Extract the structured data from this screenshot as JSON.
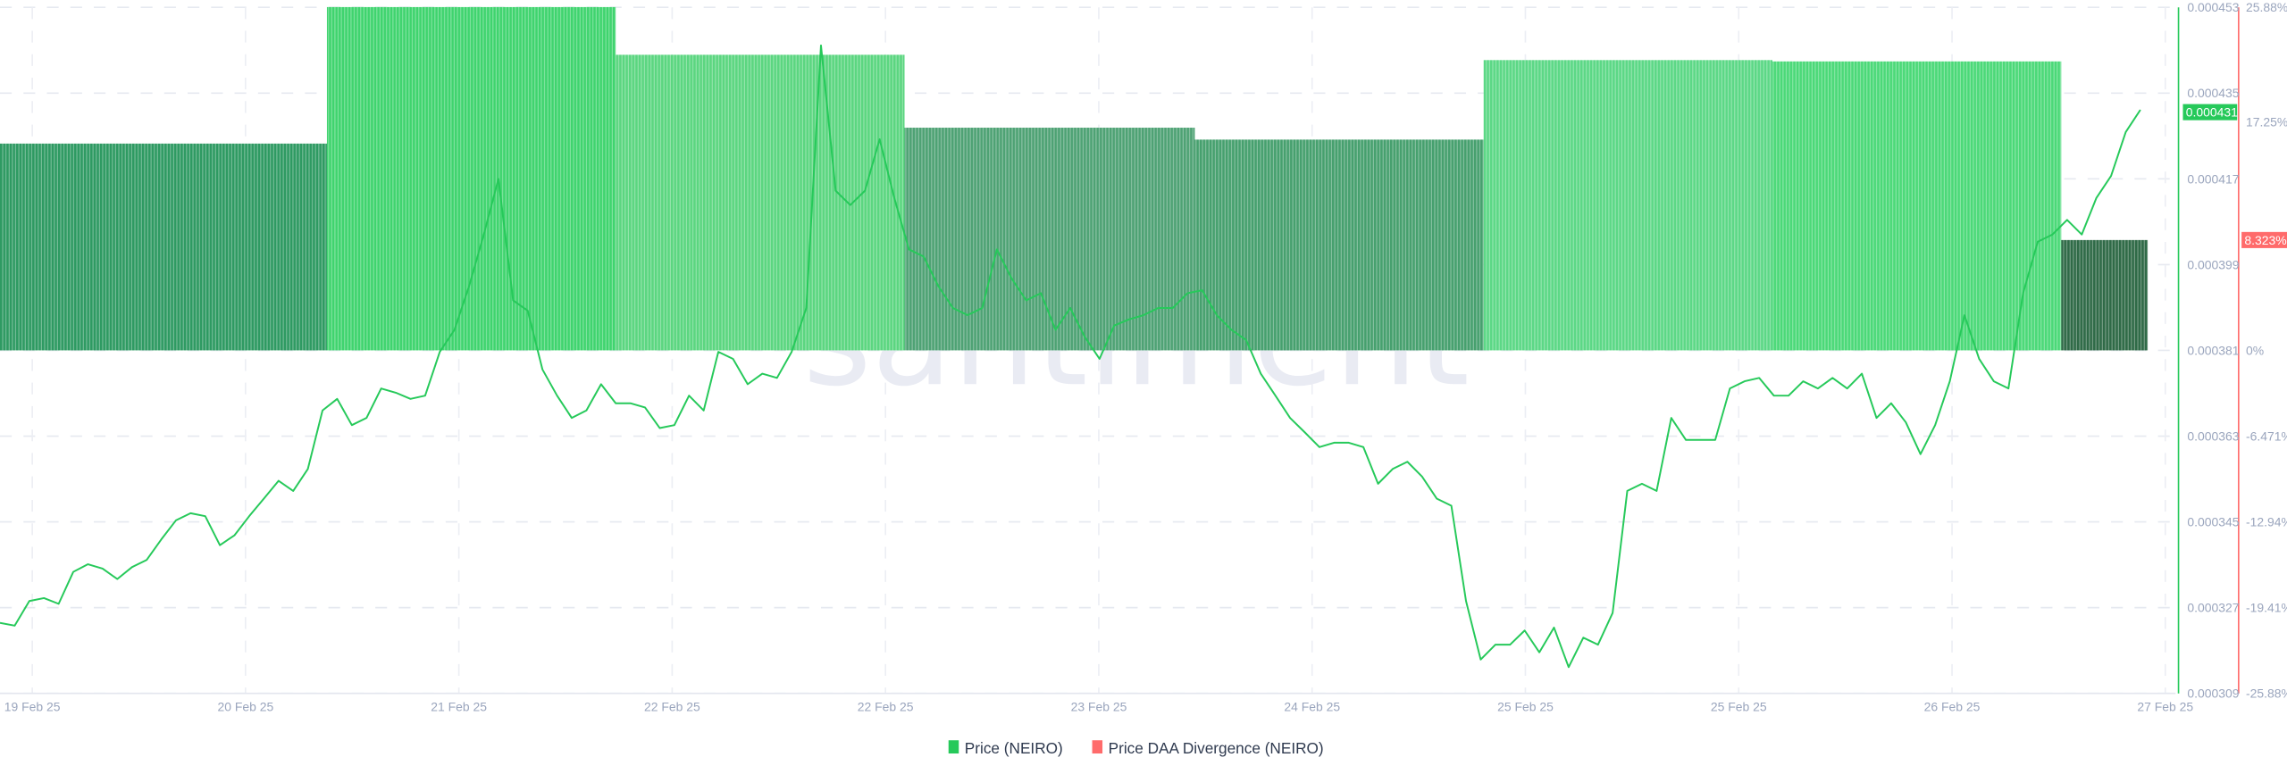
{
  "watermark": "santiment",
  "legend": [
    {
      "label": "Price (NEIRO)",
      "color": "#26c95a"
    },
    {
      "label": "Price DAA Divergence (NEIRO)",
      "color": "#ff6b6b"
    }
  ],
  "chart_data": {
    "type": "bar+line",
    "x_ticks": [
      "19 Feb 25",
      "20 Feb 25",
      "21 Feb 25",
      "22 Feb 25",
      "22 Feb 25",
      "23 Feb 25",
      "24 Feb 25",
      "25 Feb 25",
      "25 Feb 25",
      "26 Feb 25",
      "27 Feb 25"
    ],
    "grid": true,
    "legend_position": "bottom",
    "price_axis": {
      "ticks": [
        "0.000453",
        "0.000435",
        "0.000417",
        "0.000399",
        "0.000381",
        "0.000363",
        "0.000345",
        "0.000327",
        "0.000309"
      ],
      "ylim": [
        0.000309,
        0.000453
      ],
      "color": "#26c95a",
      "current_label": "0.000431",
      "current_value": 0.000431
    },
    "divergence_axis": {
      "ticks": [
        "25.88%",
        "17.25%",
        "8.323%",
        "0%",
        "-6.471%",
        "-12.94%",
        "-19.41%",
        "-25.88%"
      ],
      "tick_values": [
        25.88,
        17.25,
        8.323,
        0,
        -6.471,
        -12.94,
        -19.41,
        -25.88
      ],
      "ylim": [
        -25.88,
        25.88
      ],
      "color": "#ff6b6b",
      "current_label": "8.323%",
      "current_value": 8.323
    },
    "series": [
      {
        "name": "Price DAA Divergence (NEIRO)",
        "type": "bar",
        "unit": "%",
        "values": [
          15.6,
          25.9,
          22.3,
          16.8,
          15.9,
          21.9,
          21.8,
          8.323
        ],
        "colors": [
          "#2e9a62",
          "#3fd46e",
          "#5bd680",
          "#4ea274",
          "#46a06e",
          "#5cd886",
          "#4bd978",
          "#2f6a47"
        ]
      },
      {
        "name": "Price (NEIRO)",
        "type": "line",
        "color": "#26c95a",
        "values_e6": [
          323.8,
          323.2,
          328.4,
          329.0,
          327.8,
          334.5,
          336.1,
          335.2,
          333.0,
          335.5,
          337.0,
          341.3,
          345.3,
          346.8,
          346.2,
          340.1,
          342.2,
          346.2,
          349.9,
          353.6,
          351.5,
          356.1,
          368.4,
          370.8,
          365.3,
          366.8,
          373.0,
          372.1,
          370.8,
          371.5,
          380.7,
          385.3,
          394.5,
          405.3,
          417.0,
          391.5,
          389.3,
          377.0,
          371.5,
          366.8,
          368.4,
          373.9,
          369.9,
          369.9,
          369.0,
          364.7,
          365.3,
          371.5,
          368.4,
          380.7,
          379.2,
          373.9,
          376.1,
          375.2,
          380.7,
          389.9,
          445.0,
          414.5,
          411.5,
          414.5,
          425.3,
          413.0,
          402.2,
          400.7,
          394.5,
          389.9,
          388.4,
          389.9,
          402.2,
          396.1,
          391.5,
          393.0,
          385.3,
          389.9,
          383.8,
          379.2,
          386.2,
          387.5,
          388.4,
          389.9,
          389.9,
          393.0,
          393.6,
          388.4,
          385.3,
          383.2,
          376.1,
          371.5,
          366.8,
          363.8,
          360.7,
          361.6,
          361.6,
          360.7,
          353.0,
          356.1,
          357.6,
          354.5,
          349.9,
          348.4,
          328.4,
          316.1,
          319.2,
          319.2,
          322.2,
          317.6,
          322.8,
          314.5,
          320.7,
          319.2,
          325.9,
          351.5,
          353.0,
          351.5,
          366.8,
          362.2,
          362.2,
          362.2,
          373.0,
          374.5,
          375.2,
          371.5,
          371.5,
          374.5,
          373.0,
          375.2,
          373.0,
          376.1,
          366.8,
          369.9,
          365.9,
          359.2,
          365.3,
          374.5,
          388.4,
          379.2,
          374.5,
          373.0,
          393.0,
          403.8,
          405.3,
          408.4,
          405.3,
          413.0,
          417.6,
          426.8,
          431.5
        ]
      }
    ]
  }
}
